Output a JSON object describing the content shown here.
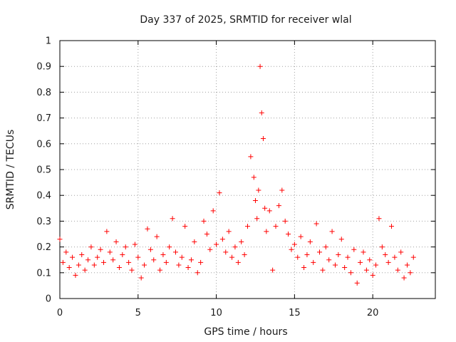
{
  "chart_data": {
    "type": "scatter",
    "title": "Day 337 of 2025, SRMTID for receiver wlal",
    "xlabel": "GPS time / hours",
    "ylabel": "SRMTID / TECUs",
    "xlim": [
      0,
      24
    ],
    "ylim": [
      0,
      1
    ],
    "xticks": [
      0,
      5,
      10,
      15,
      20
    ],
    "xtick_labels": [
      "0",
      "5",
      "10",
      "15",
      "20"
    ],
    "yticks": [
      0,
      0.1,
      0.2,
      0.3,
      0.4,
      0.5,
      0.6,
      0.7,
      0.8,
      0.9,
      1
    ],
    "ytick_labels": [
      "0",
      "0.1",
      "0.2",
      "0.3",
      "0.4",
      "0.5",
      "0.6",
      "0.7",
      "0.8",
      "0.9",
      "1"
    ],
    "grid": true,
    "marker": "plus",
    "series": [
      {
        "name": "SRMTID",
        "color": "#ff0000",
        "x": [
          0.0,
          0.2,
          0.4,
          0.6,
          0.8,
          1.0,
          1.2,
          1.4,
          1.6,
          1.8,
          2.0,
          2.2,
          2.4,
          2.6,
          2.8,
          3.0,
          3.2,
          3.4,
          3.6,
          3.8,
          4.0,
          4.2,
          4.4,
          4.6,
          4.8,
          5.0,
          5.2,
          5.4,
          5.6,
          5.8,
          6.0,
          6.2,
          6.4,
          6.6,
          6.8,
          7.0,
          7.2,
          7.4,
          7.6,
          7.8,
          8.0,
          8.2,
          8.4,
          8.6,
          8.8,
          9.0,
          9.2,
          9.4,
          9.6,
          9.8,
          10.0,
          10.2,
          10.4,
          10.6,
          10.8,
          11.0,
          11.2,
          11.4,
          11.6,
          11.8,
          12.0,
          12.2,
          12.4,
          12.5,
          12.6,
          12.7,
          12.8,
          12.9,
          13.0,
          13.1,
          13.2,
          13.4,
          13.6,
          13.8,
          14.0,
          14.2,
          14.4,
          14.6,
          14.8,
          15.0,
          15.2,
          15.4,
          15.6,
          15.8,
          16.0,
          16.2,
          16.4,
          16.6,
          16.8,
          17.0,
          17.2,
          17.4,
          17.6,
          17.8,
          18.0,
          18.2,
          18.4,
          18.6,
          18.8,
          19.0,
          19.2,
          19.4,
          19.6,
          19.8,
          20.0,
          20.2,
          20.4,
          20.6,
          20.8,
          21.0,
          21.2,
          21.4,
          21.6,
          21.8,
          22.0,
          22.2,
          22.4,
          22.6
        ],
        "y": [
          0.23,
          0.14,
          0.18,
          0.12,
          0.16,
          0.09,
          0.13,
          0.17,
          0.11,
          0.15,
          0.2,
          0.13,
          0.16,
          0.19,
          0.14,
          0.26,
          0.18,
          0.15,
          0.22,
          0.12,
          0.17,
          0.2,
          0.14,
          0.11,
          0.21,
          0.16,
          0.08,
          0.13,
          0.27,
          0.19,
          0.15,
          0.24,
          0.11,
          0.17,
          0.14,
          0.2,
          0.31,
          0.18,
          0.13,
          0.16,
          0.28,
          0.12,
          0.15,
          0.22,
          0.1,
          0.14,
          0.3,
          0.25,
          0.19,
          0.34,
          0.21,
          0.41,
          0.23,
          0.18,
          0.26,
          0.16,
          0.2,
          0.14,
          0.22,
          0.17,
          0.28,
          0.55,
          0.47,
          0.38,
          0.31,
          0.42,
          0.9,
          0.72,
          0.62,
          0.35,
          0.26,
          0.34,
          0.11,
          0.28,
          0.36,
          0.42,
          0.3,
          0.25,
          0.19,
          0.21,
          0.16,
          0.24,
          0.12,
          0.17,
          0.22,
          0.14,
          0.29,
          0.18,
          0.11,
          0.2,
          0.15,
          0.26,
          0.13,
          0.17,
          0.23,
          0.12,
          0.16,
          0.1,
          0.19,
          0.06,
          0.14,
          0.18,
          0.11,
          0.15,
          0.09,
          0.13,
          0.31,
          0.2,
          0.17,
          0.14,
          0.28,
          0.16,
          0.11,
          0.18,
          0.08,
          0.13,
          0.1,
          0.16
        ]
      }
    ]
  }
}
